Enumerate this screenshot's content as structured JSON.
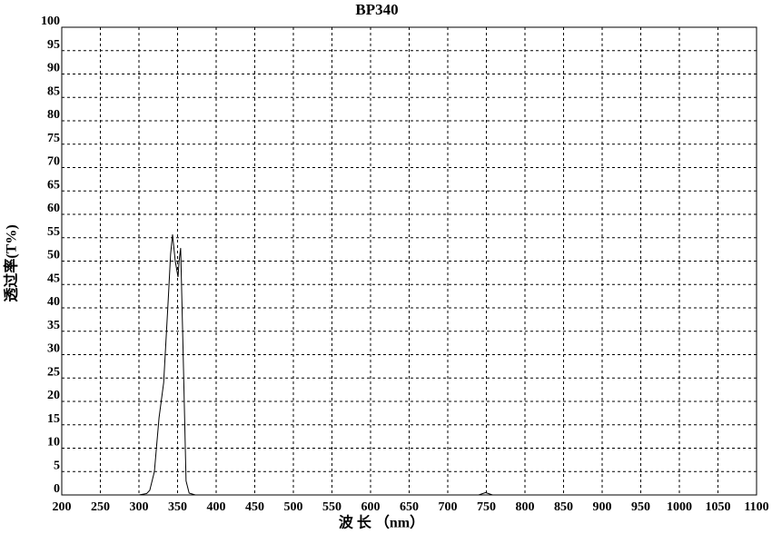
{
  "chart_data": {
    "type": "line",
    "title": "BP340",
    "x_label": "波 长 （nm）",
    "y_label": "透过率(T%)",
    "series": [
      {
        "name": null,
        "color": "#000000",
        "x": [
          200,
          300,
          310,
          314,
          320,
          326,
          332,
          338,
          341,
          343.5,
          347,
          350.6,
          352,
          354,
          357,
          361,
          365,
          373,
          400,
          500,
          600,
          700,
          740,
          749,
          758,
          800
        ],
        "values": [
          0,
          0,
          0.3,
          1,
          5,
          16.5,
          24,
          42,
          51.5,
          55.7,
          50,
          46.6,
          50,
          52.8,
          32,
          3,
          0.4,
          0,
          0,
          0,
          0,
          0,
          0,
          0.5,
          0,
          0
        ]
      }
    ],
    "xlim": [
      200,
      1100
    ],
    "xticks": [
      200,
      250,
      300,
      350,
      400,
      450,
      500,
      550,
      600,
      650,
      700,
      750,
      800,
      850,
      900,
      950,
      1000,
      1050,
      1100
    ],
    "ylim": [
      0,
      100
    ],
    "yticks": [
      0,
      5,
      10,
      15,
      20,
      25,
      30,
      35,
      40,
      45,
      50,
      55,
      60,
      65,
      70,
      75,
      80,
      85,
      90,
      95,
      100
    ],
    "grid": true
  }
}
